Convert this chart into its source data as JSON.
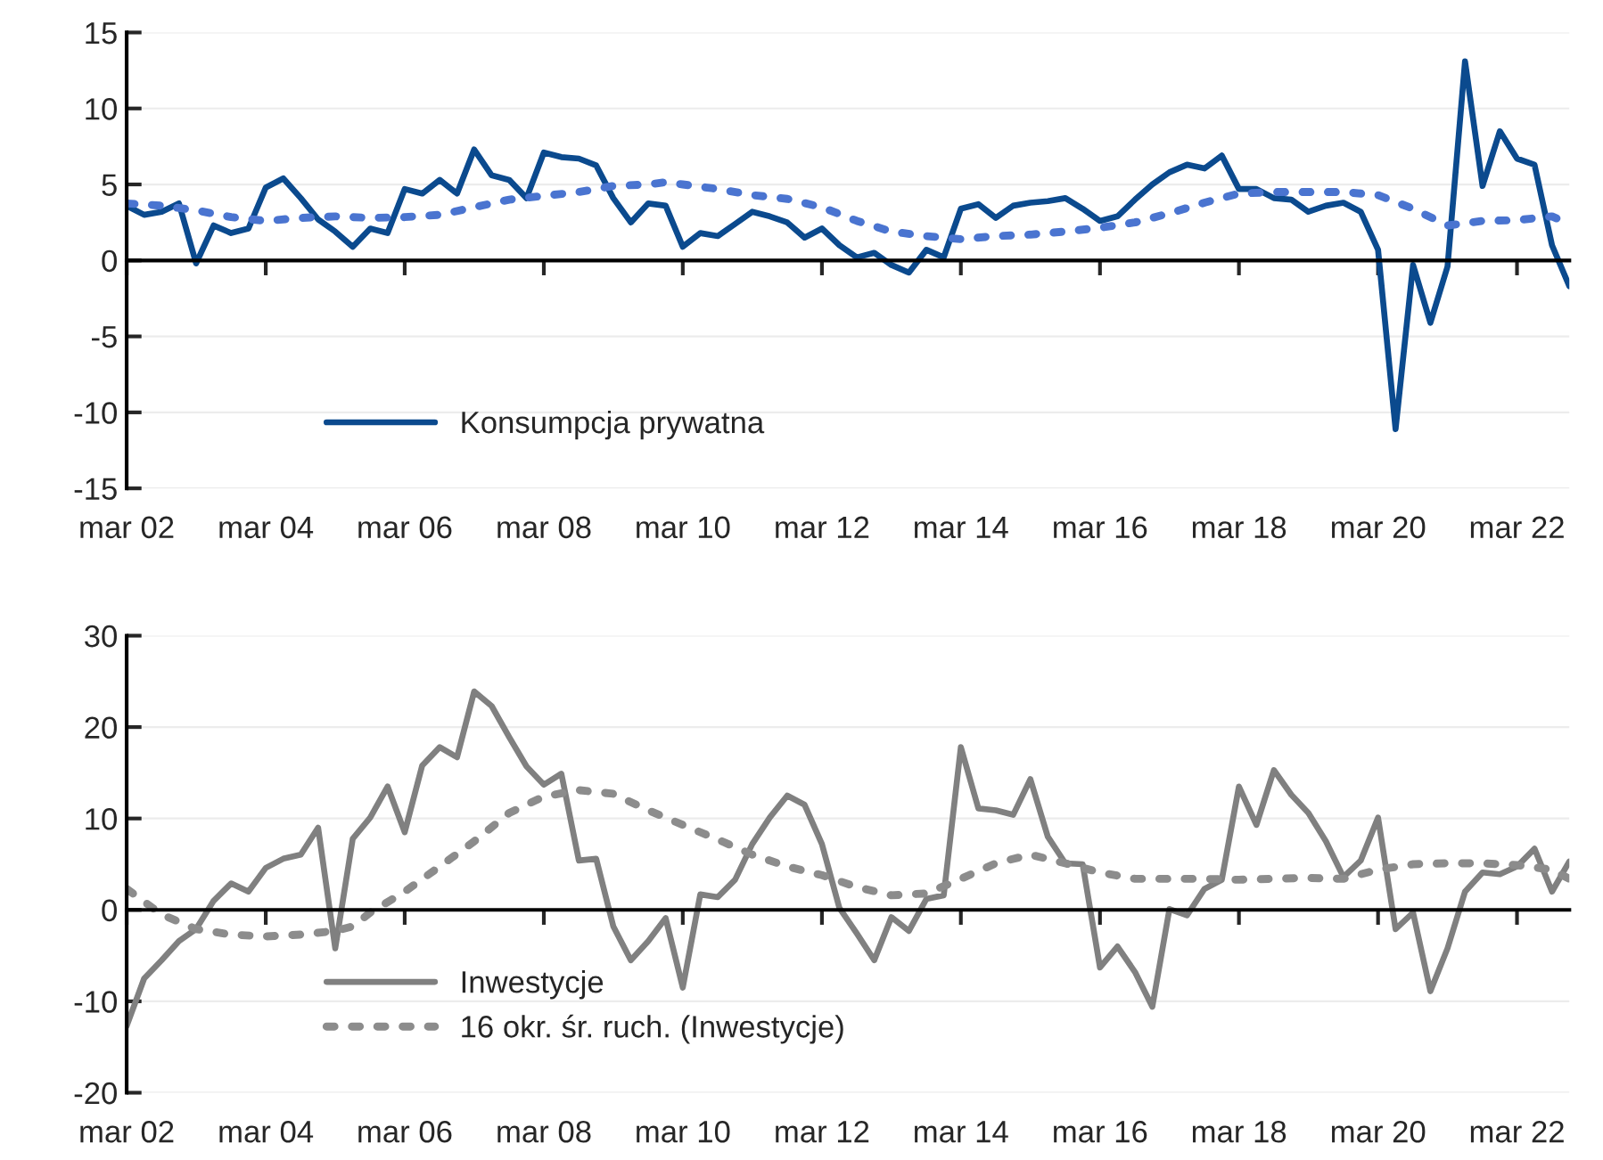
{
  "chart_data": [
    {
      "type": "line",
      "x": [
        "2002-03",
        "2002-06",
        "2002-09",
        "2002-12",
        "2003-03",
        "2003-06",
        "2003-09",
        "2003-12",
        "2004-03",
        "2004-06",
        "2004-09",
        "2004-12",
        "2005-03",
        "2005-06",
        "2005-09",
        "2005-12",
        "2006-03",
        "2006-06",
        "2006-09",
        "2006-12",
        "2007-03",
        "2007-06",
        "2007-09",
        "2007-12",
        "2008-03",
        "2008-06",
        "2008-09",
        "2008-12",
        "2009-03",
        "2009-06",
        "2009-09",
        "2009-12",
        "2010-03",
        "2010-06",
        "2010-09",
        "2010-12",
        "2011-03",
        "2011-06",
        "2011-09",
        "2011-12",
        "2012-03",
        "2012-06",
        "2012-09",
        "2012-12",
        "2013-03",
        "2013-06",
        "2013-09",
        "2013-12",
        "2014-03",
        "2014-06",
        "2014-09",
        "2014-12",
        "2015-03",
        "2015-06",
        "2015-09",
        "2015-12",
        "2016-03",
        "2016-06",
        "2016-09",
        "2016-12",
        "2017-03",
        "2017-06",
        "2017-09",
        "2017-12",
        "2018-03",
        "2018-06",
        "2018-09",
        "2018-12",
        "2019-03",
        "2019-06",
        "2019-09",
        "2019-12",
        "2020-03",
        "2020-06",
        "2020-09",
        "2020-12",
        "2021-03",
        "2021-06",
        "2021-09",
        "2021-12",
        "2022-03",
        "2022-06",
        "2022-09",
        "2022-12"
      ],
      "series": [
        {
          "name": "Konsumpcja prywatna",
          "color": "#0b4a8e",
          "line_style": "solid",
          "values": [
            3.6,
            3.0,
            3.2,
            3.75,
            -0.2,
            2.3,
            1.8,
            2.1,
            4.8,
            5.4,
            4.1,
            2.7,
            1.9,
            0.9,
            2.1,
            1.8,
            4.7,
            4.4,
            5.3,
            4.4,
            7.3,
            5.6,
            5.3,
            4.1,
            7.1,
            6.8,
            6.7,
            6.25,
            4.1,
            2.5,
            3.75,
            3.6,
            0.9,
            1.8,
            1.6,
            2.4,
            3.2,
            2.9,
            2.5,
            1.5,
            2.1,
            1.0,
            0.2,
            0.5,
            -0.3,
            -0.8,
            0.7,
            0.2,
            3.4,
            3.7,
            2.8,
            3.6,
            3.8,
            3.9,
            4.1,
            3.4,
            2.6,
            2.9,
            4.0,
            5.0,
            5.8,
            6.3,
            6.05,
            6.9,
            4.7,
            4.7,
            4.1,
            4.0,
            3.2,
            3.6,
            3.8,
            3.2,
            0.7,
            -11.1,
            -0.3,
            -4.1,
            -0.4,
            13.1,
            4.9,
            8.5,
            6.7,
            6.3,
            1.0,
            -1.7
          ]
        },
        {
          "color": "#4a74d0",
          "line_style": "dotted",
          "x": [
            "2002-03",
            "2002-09",
            "2003-03",
            "2003-09",
            "2004-03",
            "2004-09",
            "2005-03",
            "2005-09",
            "2006-03",
            "2006-09",
            "2007-03",
            "2007-09",
            "2008-03",
            "2008-09",
            "2009-03",
            "2009-09",
            "2009-12",
            "2010-03",
            "2010-09",
            "2011-03",
            "2011-09",
            "2012-03",
            "2012-09",
            "2013-03",
            "2013-09",
            "2014-03",
            "2014-09",
            "2015-03",
            "2015-09",
            "2016-03",
            "2016-09",
            "2017-03",
            "2017-09",
            "2018-03",
            "2018-09",
            "2019-03",
            "2019-09",
            "2020-03",
            "2020-09",
            "2021-03",
            "2021-09",
            "2022-03",
            "2022-09",
            "2022-12"
          ],
          "values": [
            3.75,
            3.6,
            3.3,
            2.85,
            2.6,
            2.8,
            2.9,
            2.8,
            2.85,
            3.0,
            3.5,
            4.0,
            4.25,
            4.5,
            4.9,
            5.0,
            5.15,
            5.0,
            4.7,
            4.3,
            4.05,
            3.5,
            2.6,
            1.9,
            1.6,
            1.4,
            1.6,
            1.7,
            1.9,
            2.15,
            2.5,
            3.1,
            3.8,
            4.4,
            4.5,
            4.5,
            4.5,
            4.3,
            3.4,
            2.3,
            2.6,
            2.65,
            2.9,
            2.4
          ]
        }
      ],
      "xlim": [
        "2002-03",
        "2022-12"
      ],
      "xticks": [
        {
          "value": "2002-03",
          "label": "mar 02"
        },
        {
          "value": "2004-03",
          "label": "mar 04"
        },
        {
          "value": "2006-03",
          "label": "mar 06"
        },
        {
          "value": "2008-03",
          "label": "mar 08"
        },
        {
          "value": "2010-03",
          "label": "mar 10"
        },
        {
          "value": "2012-03",
          "label": "mar 12"
        },
        {
          "value": "2014-03",
          "label": "mar 14"
        },
        {
          "value": "2016-03",
          "label": "mar 16"
        },
        {
          "value": "2018-03",
          "label": "mar 18"
        },
        {
          "value": "2020-03",
          "label": "mar 20"
        },
        {
          "value": "2022-03",
          "label": "mar 22"
        }
      ],
      "ylim": [
        -15,
        15
      ],
      "yticks": [
        -15,
        -10,
        -5,
        0,
        5,
        10,
        15
      ],
      "grid": "y",
      "legend": "bottom left"
    },
    {
      "type": "line",
      "x": [
        "2002-03",
        "2002-06",
        "2002-09",
        "2002-12",
        "2003-03",
        "2003-06",
        "2003-09",
        "2003-12",
        "2004-03",
        "2004-06",
        "2004-09",
        "2004-12",
        "2005-03",
        "2005-06",
        "2005-09",
        "2005-12",
        "2006-03",
        "2006-06",
        "2006-09",
        "2006-12",
        "2007-03",
        "2007-06",
        "2007-09",
        "2007-12",
        "2008-03",
        "2008-06",
        "2008-09",
        "2008-12",
        "2009-03",
        "2009-06",
        "2009-09",
        "2009-12",
        "2010-03",
        "2010-06",
        "2010-09",
        "2010-12",
        "2011-03",
        "2011-06",
        "2011-09",
        "2011-12",
        "2012-03",
        "2012-06",
        "2012-09",
        "2012-12",
        "2013-03",
        "2013-06",
        "2013-09",
        "2013-12",
        "2014-03",
        "2014-06",
        "2014-09",
        "2014-12",
        "2015-03",
        "2015-06",
        "2015-09",
        "2015-12",
        "2016-03",
        "2016-06",
        "2016-09",
        "2016-12",
        "2017-03",
        "2017-06",
        "2017-09",
        "2017-12",
        "2018-03",
        "2018-06",
        "2018-09",
        "2018-12",
        "2019-03",
        "2019-06",
        "2019-09",
        "2019-12",
        "2020-03",
        "2020-06",
        "2020-09",
        "2020-12",
        "2021-03",
        "2021-06",
        "2021-09",
        "2021-12",
        "2022-03",
        "2022-06",
        "2022-09",
        "2022-12"
      ],
      "series": [
        {
          "name": "Inwestycje",
          "color": "#808080",
          "line_style": "solid",
          "values": [
            -12.7,
            -7.5,
            -5.5,
            -3.4,
            -2.1,
            1.0,
            2.9,
            2.0,
            4.6,
            5.6,
            6.05,
            9.0,
            -4.2,
            7.8,
            10.1,
            13.5,
            8.5,
            15.8,
            17.8,
            16.7,
            23.9,
            22.3,
            18.9,
            15.7,
            13.7,
            14.9,
            5.4,
            5.6,
            -1.8,
            -5.5,
            -3.4,
            -0.9,
            -8.5,
            1.7,
            1.4,
            3.3,
            7.2,
            10.1,
            12.5,
            11.5,
            7.2,
            0.2,
            -2.6,
            -5.5,
            -0.8,
            -2.3,
            1.2,
            1.6,
            17.8,
            11.1,
            10.9,
            10.4,
            14.3,
            8.0,
            5.1,
            5.0,
            -6.3,
            -4.0,
            -6.8,
            -10.6,
            0.1,
            -0.6,
            2.3,
            3.3,
            13.5,
            9.3,
            15.3,
            12.6,
            10.6,
            7.5,
            3.6,
            5.4,
            10.1,
            -2.1,
            -0.3,
            -8.9,
            -4.2,
            2.0,
            4.1,
            3.9,
            4.75,
            6.7,
            2.0,
            5.3
          ]
        },
        {
          "name": "16 okr. śr. ruch. (Inwestycje)",
          "color": "#8c8c8c",
          "line_style": "dotted",
          "x": [
            "2002-03",
            "2002-09",
            "2003-03",
            "2003-09",
            "2004-03",
            "2004-09",
            "2005-03",
            "2005-06",
            "2005-09",
            "2006-03",
            "2006-09",
            "2007-03",
            "2007-09",
            "2008-03",
            "2008-09",
            "2009-03",
            "2009-09",
            "2010-03",
            "2010-09",
            "2011-03",
            "2011-09",
            "2012-03",
            "2012-09",
            "2013-03",
            "2013-09",
            "2014-03",
            "2014-09",
            "2015-03",
            "2015-09",
            "2016-03",
            "2016-09",
            "2017-03",
            "2017-09",
            "2018-03",
            "2018-09",
            "2019-03",
            "2019-09",
            "2020-03",
            "2020-09",
            "2021-03",
            "2021-09",
            "2022-03",
            "2022-09",
            "2022-12"
          ],
          "values": [
            2.3,
            -0.5,
            -2.1,
            -2.7,
            -2.9,
            -2.7,
            -2.3,
            -1.8,
            -0.3,
            2.0,
            4.75,
            7.5,
            10.6,
            12.4,
            13.1,
            12.7,
            10.9,
            9.3,
            7.7,
            6.05,
            4.75,
            3.8,
            2.5,
            1.6,
            1.8,
            3.4,
            5.1,
            6.05,
            5.1,
            4.1,
            3.4,
            3.4,
            3.4,
            3.3,
            3.4,
            3.5,
            3.4,
            4.4,
            5.0,
            5.1,
            5.1,
            4.9,
            4.4,
            3.4
          ]
        }
      ],
      "xlim": [
        "2002-03",
        "2022-12"
      ],
      "xticks": [
        {
          "value": "2002-03",
          "label": "mar 02"
        },
        {
          "value": "2004-03",
          "label": "mar 04"
        },
        {
          "value": "2006-03",
          "label": "mar 06"
        },
        {
          "value": "2008-03",
          "label": "mar 08"
        },
        {
          "value": "2010-03",
          "label": "mar 10"
        },
        {
          "value": "2012-03",
          "label": "mar 12"
        },
        {
          "value": "2014-03",
          "label": "mar 14"
        },
        {
          "value": "2016-03",
          "label": "mar 16"
        },
        {
          "value": "2018-03",
          "label": "mar 18"
        },
        {
          "value": "2020-03",
          "label": "mar 20"
        },
        {
          "value": "2022-03",
          "label": "mar 22"
        }
      ],
      "ylim": [
        -20,
        30
      ],
      "yticks": [
        -20,
        -10,
        0,
        10,
        20,
        30
      ],
      "grid": "y",
      "legend": "bottom left"
    }
  ]
}
